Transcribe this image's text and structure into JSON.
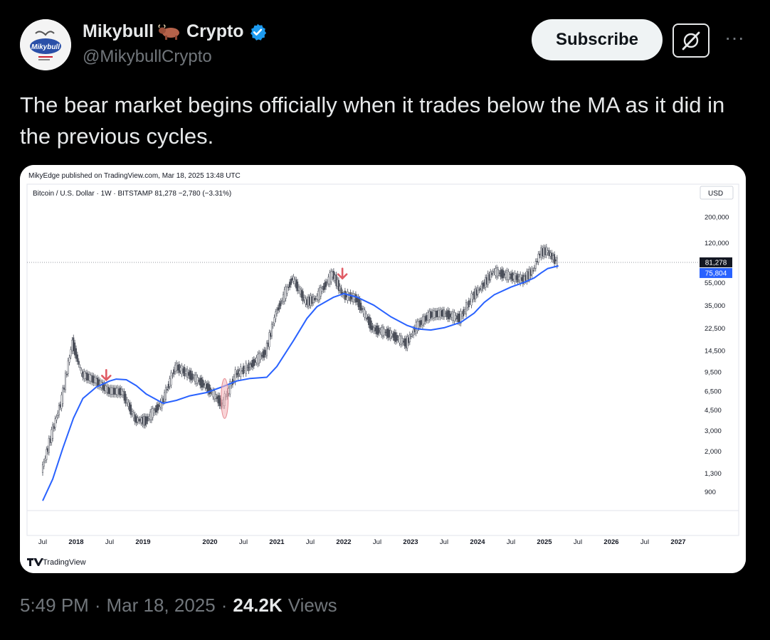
{
  "post": {
    "author_name_part1": "Mikybull",
    "author_name_part2": "Crypto",
    "handle": "@MikybullCrypto",
    "subscribe_label": "Subscribe",
    "more_label": "···",
    "text": "The bear market begins officially when it trades below the MA as it did in the previous cycles.",
    "avatar_label": "Mikybull",
    "verified_color": "#1d9bf0"
  },
  "chart": {
    "published": "MikyEdge published on TradingView.com, Mar 18, 2025 13:48 UTC",
    "symbol": "Bitcoin / U.S. Dollar · 1W · BITSTAMP  81,278  −2,780 (−3.31%)",
    "currency": "USD",
    "price_badge": "81,278",
    "ma_badge": "75,804",
    "brand": "TradingView",
    "ma_color": "#2962ff"
  },
  "chart_data": {
    "type": "line",
    "y_scale": "log",
    "y_ticks": [
      "200,000",
      "120,000",
      "55,000",
      "35,000",
      "22,500",
      "14,500",
      "9,500",
      "6,500",
      "4,500",
      "3,000",
      "2,000",
      "1,300",
      "900"
    ],
    "x_ticks": [
      "Jul",
      "2018",
      "Jul",
      "2019",
      "2020",
      "Jul",
      "2021",
      "Jul",
      "2022",
      "Jul",
      "2023",
      "Jul",
      "2024",
      "Jul",
      "2025",
      "Jul",
      "2026",
      "Jul",
      "2027"
    ],
    "series": [
      {
        "values": [
          [
            2017.5,
            1350
          ],
          [
            2017.65,
            2800
          ],
          [
            2017.8,
            5500
          ],
          [
            2017.96,
            17000
          ],
          [
            2018.1,
            9000
          ],
          [
            2018.3,
            8000
          ],
          [
            2018.5,
            6500
          ],
          [
            2018.7,
            6400
          ],
          [
            2018.9,
            3700
          ],
          [
            2019.05,
            3600
          ],
          [
            2019.3,
            5200
          ],
          [
            2019.5,
            10500
          ],
          [
            2019.7,
            9000
          ],
          [
            2019.95,
            7200
          ],
          [
            2020.2,
            5000
          ],
          [
            2020.4,
            9000
          ],
          [
            2020.6,
            10500
          ],
          [
            2020.85,
            14000
          ],
          [
            2021.0,
            30000
          ],
          [
            2021.25,
            60000
          ],
          [
            2021.45,
            37000
          ],
          [
            2021.6,
            40000
          ],
          [
            2021.85,
            65000
          ],
          [
            2022.0,
            43000
          ],
          [
            2022.2,
            40000
          ],
          [
            2022.45,
            22000
          ],
          [
            2022.7,
            20000
          ],
          [
            2022.95,
            16500
          ],
          [
            2023.1,
            23000
          ],
          [
            2023.3,
            29000
          ],
          [
            2023.5,
            30000
          ],
          [
            2023.75,
            27000
          ],
          [
            2023.95,
            42000
          ],
          [
            2024.1,
            52000
          ],
          [
            2024.25,
            68000
          ],
          [
            2024.5,
            62000
          ],
          [
            2024.7,
            58000
          ],
          [
            2024.85,
            70000
          ],
          [
            2024.95,
            98000
          ],
          [
            2025.05,
            102000
          ],
          [
            2025.15,
            88000
          ],
          [
            2025.21,
            81278
          ]
        ]
      },
      {
        "values": [
          [
            2017.5,
            750
          ],
          [
            2017.65,
            1150
          ],
          [
            2017.8,
            2100
          ],
          [
            2017.96,
            3800
          ],
          [
            2018.1,
            5600
          ],
          [
            2018.3,
            7000
          ],
          [
            2018.5,
            7900
          ],
          [
            2018.6,
            8200
          ],
          [
            2018.75,
            8100
          ],
          [
            2018.9,
            7200
          ],
          [
            2019.05,
            6100
          ],
          [
            2019.3,
            5100
          ],
          [
            2019.5,
            5400
          ],
          [
            2019.7,
            5900
          ],
          [
            2019.95,
            6300
          ],
          [
            2020.2,
            7100
          ],
          [
            2020.4,
            7900
          ],
          [
            2020.6,
            8300
          ],
          [
            2020.85,
            8500
          ],
          [
            2021.0,
            10500
          ],
          [
            2021.25,
            17500
          ],
          [
            2021.45,
            27000
          ],
          [
            2021.6,
            34000
          ],
          [
            2021.85,
            41000
          ],
          [
            2022.0,
            44000
          ],
          [
            2022.2,
            41000
          ],
          [
            2022.45,
            35000
          ],
          [
            2022.7,
            28000
          ],
          [
            2022.95,
            23500
          ],
          [
            2023.1,
            22000
          ],
          [
            2023.3,
            21500
          ],
          [
            2023.5,
            22500
          ],
          [
            2023.75,
            25000
          ],
          [
            2023.95,
            30000
          ],
          [
            2024.1,
            37000
          ],
          [
            2024.25,
            43000
          ],
          [
            2024.5,
            50000
          ],
          [
            2024.7,
            55000
          ],
          [
            2024.85,
            60000
          ],
          [
            2024.95,
            66000
          ],
          [
            2025.05,
            72000
          ],
          [
            2025.21,
            75804
          ]
        ]
      }
    ],
    "annotations": [
      {
        "type": "arrow-down",
        "x": 2018.45,
        "y": 9800,
        "color": "#e05c65"
      },
      {
        "type": "arrow-down",
        "x": 2021.98,
        "y": 72000,
        "color": "#e05c65"
      },
      {
        "type": "ellipse",
        "x": 2020.22,
        "y": 5600,
        "color": "#f4b8bd"
      }
    ]
  },
  "footer": {
    "time": "5:49 PM",
    "date": "Mar 18, 2025",
    "views_count": "24.2K",
    "views_label": "Views"
  }
}
